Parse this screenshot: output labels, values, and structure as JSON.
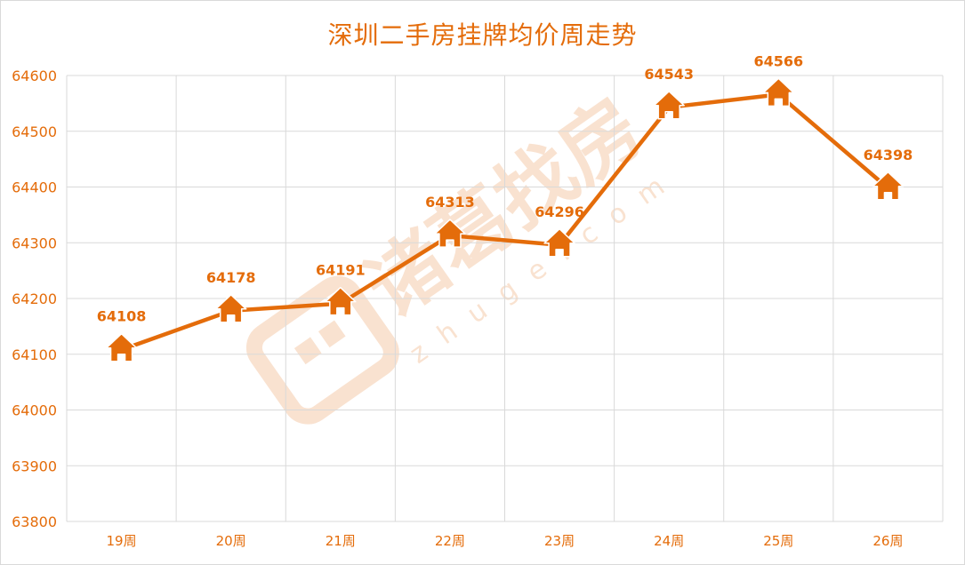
{
  "chart_data": {
    "type": "line",
    "title": "深圳二手房挂牌均价周走势",
    "xlabel": "",
    "ylabel": "",
    "categories": [
      "19周",
      "20周",
      "21周",
      "22周",
      "23周",
      "24周",
      "25周",
      "26周"
    ],
    "series": [
      {
        "values": [
          64108,
          64178,
          64191,
          64313,
          64296,
          64543,
          64566,
          64398
        ]
      }
    ],
    "data_labels": [
      "64108",
      "64178",
      "64191",
      "64313",
      "64296",
      "64543",
      "64566",
      "64398"
    ],
    "ylim": [
      63800,
      64600
    ],
    "yticks": [
      "63800",
      "63900",
      "64000",
      "64100",
      "64200",
      "64300",
      "64400",
      "64500",
      "64600"
    ],
    "grid": true,
    "legend": "none",
    "marker_icon": "house-icon",
    "line_color": "#e46c0a"
  },
  "watermark": {
    "logo_icon": "zhuge-logo-icon",
    "text": "诸葛找房",
    "sub": "zhuge.com"
  }
}
